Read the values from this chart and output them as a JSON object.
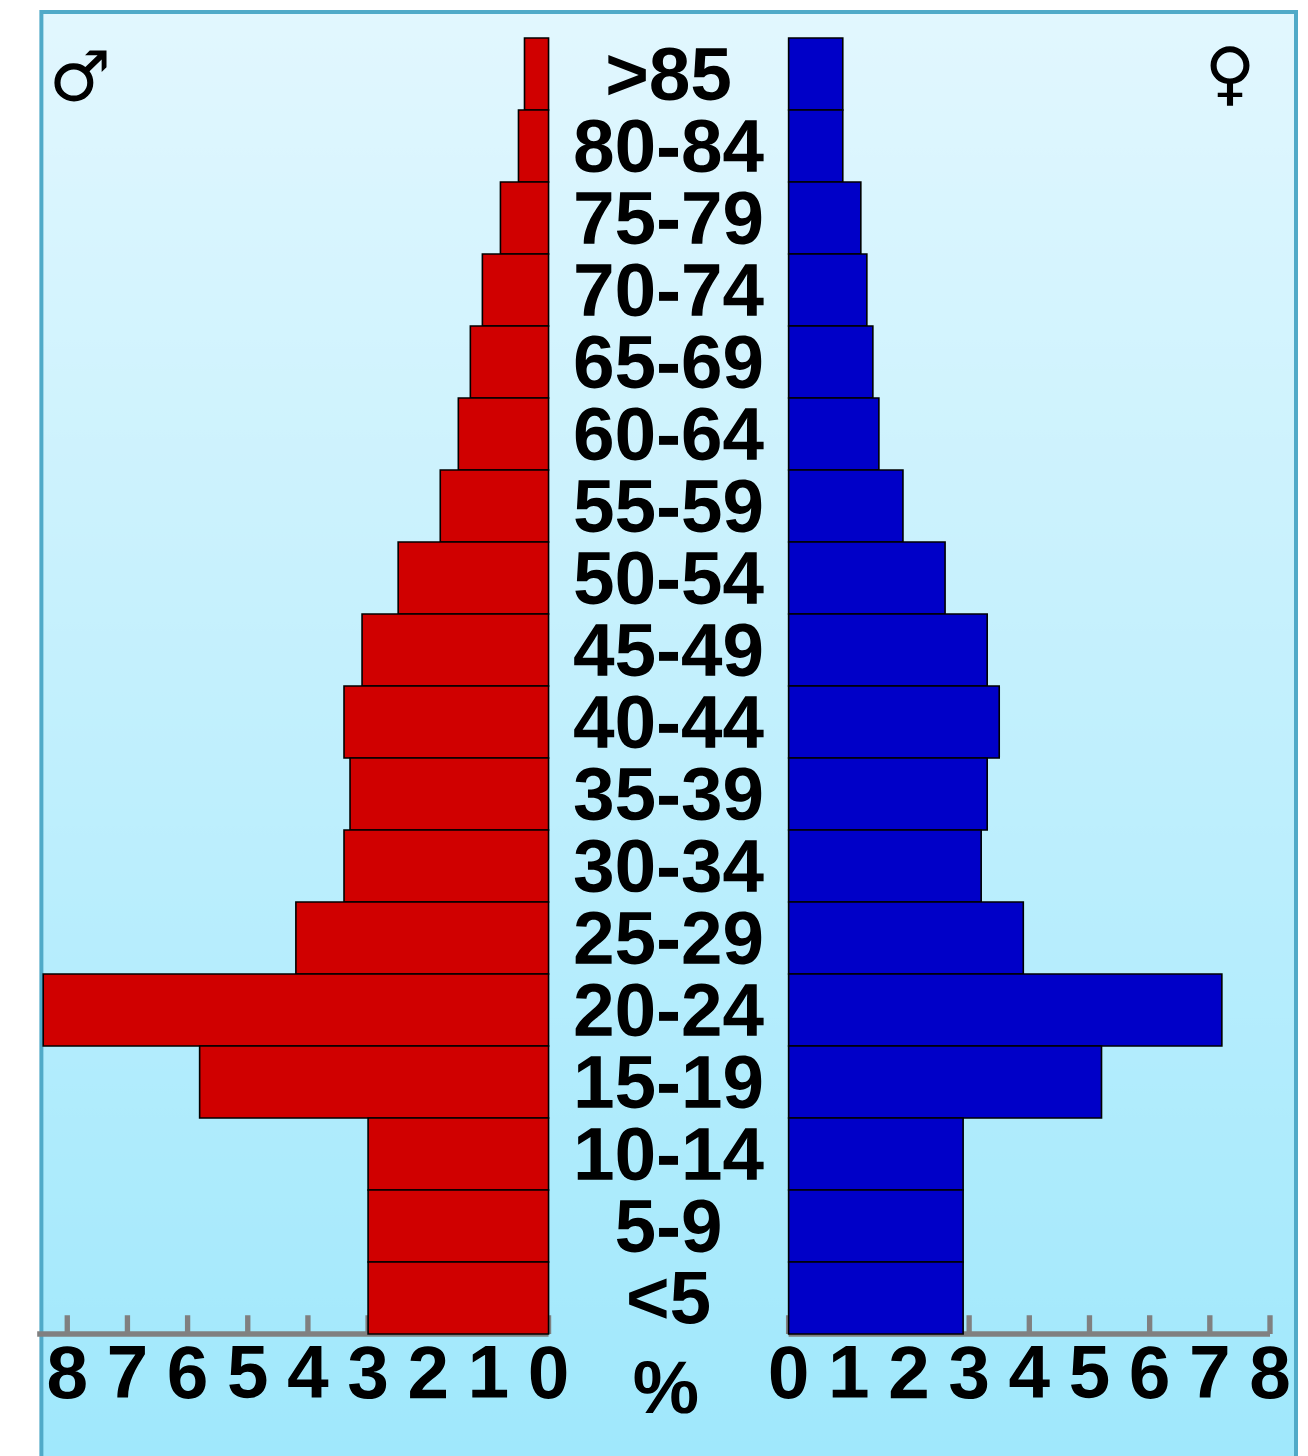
{
  "chart_data": [
    {
      "type": "bar",
      "orientation": "horizontal",
      "xlabel": "%",
      "categories": [
        ">85",
        "80-84",
        "75-79",
        "70-74",
        "65-69",
        "60-64",
        "55-59",
        "50-54",
        "45-49",
        "40-44",
        "35-39",
        "30-34",
        "25-29",
        "20-24",
        "15-19",
        "10-14",
        "5-9",
        "<5"
      ],
      "series": [
        {
          "name": "♂",
          "color": "#d00000",
          "values": [
            0.4,
            0.5,
            0.8,
            1.1,
            1.3,
            1.5,
            1.8,
            2.5,
            3.1,
            3.4,
            3.3,
            3.4,
            4.2,
            8.4,
            5.8,
            3.0,
            3.0,
            3.0
          ]
        }
      ],
      "xlim": [
        8.5,
        0
      ],
      "xticks": [
        8,
        7,
        6,
        5,
        4,
        3,
        2,
        1,
        0
      ]
    },
    {
      "type": "bar",
      "orientation": "horizontal",
      "tick_labels": "x",
      "series": [
        {
          "name": "♀",
          "color": "#0000c8",
          "values": [
            0.9,
            0.9,
            1.2,
            1.3,
            1.4,
            1.5,
            1.9,
            2.6,
            3.3,
            3.5,
            3.3,
            3.2,
            3.9,
            7.2,
            5.2,
            2.9,
            2.9,
            2.9
          ]
        }
      ],
      "xlim": [
        0,
        8
      ],
      "xticks": [
        0,
        1,
        2,
        3,
        4,
        5,
        6,
        7,
        8
      ]
    }
  ]
}
